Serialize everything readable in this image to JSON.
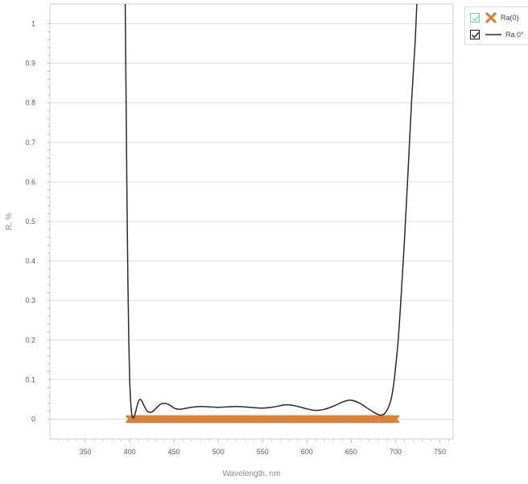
{
  "chart_data": {
    "type": "line",
    "xlabel": "Wavelength, nm",
    "ylabel": "R, %",
    "xlim": [
      310,
      765
    ],
    "ylim": [
      -0.05,
      1.05
    ],
    "xticks": [
      350,
      400,
      450,
      500,
      550,
      600,
      650,
      700,
      750
    ],
    "yticks": [
      0,
      0.1,
      0.2,
      0.3,
      0.4,
      0.5,
      0.6,
      0.7,
      0.8,
      0.9,
      1
    ],
    "grid": "horizontal",
    "legend_position": "top-right outside",
    "series": [
      {
        "name": "Ra(0)",
        "style": "x-markers",
        "color": "#d4843c",
        "x_range": [
          400,
          700
        ],
        "x_step": 2,
        "y": 0
      },
      {
        "name": "Ra 0°",
        "style": "line",
        "color": "#2b2b2b",
        "points": [
          [
            395,
            1.05
          ],
          [
            396,
            0.8
          ],
          [
            397,
            0.55
          ],
          [
            398,
            0.35
          ],
          [
            399,
            0.2
          ],
          [
            400,
            0.1
          ],
          [
            401,
            0.05
          ],
          [
            402,
            0.02
          ],
          [
            403,
            0.006
          ],
          [
            404,
            0.003
          ],
          [
            406,
            0.012
          ],
          [
            408,
            0.03
          ],
          [
            410,
            0.045
          ],
          [
            412,
            0.05
          ],
          [
            414,
            0.045
          ],
          [
            416,
            0.035
          ],
          [
            420,
            0.02
          ],
          [
            425,
            0.018
          ],
          [
            430,
            0.028
          ],
          [
            435,
            0.038
          ],
          [
            440,
            0.04
          ],
          [
            445,
            0.036
          ],
          [
            450,
            0.028
          ],
          [
            455,
            0.025
          ],
          [
            460,
            0.026
          ],
          [
            470,
            0.03
          ],
          [
            480,
            0.032
          ],
          [
            490,
            0.031
          ],
          [
            500,
            0.03
          ],
          [
            510,
            0.031
          ],
          [
            520,
            0.032
          ],
          [
            530,
            0.031
          ],
          [
            540,
            0.029
          ],
          [
            550,
            0.028
          ],
          [
            560,
            0.03
          ],
          [
            570,
            0.034
          ],
          [
            575,
            0.036
          ],
          [
            580,
            0.036
          ],
          [
            590,
            0.032
          ],
          [
            600,
            0.026
          ],
          [
            610,
            0.022
          ],
          [
            620,
            0.025
          ],
          [
            630,
            0.033
          ],
          [
            640,
            0.043
          ],
          [
            648,
            0.048
          ],
          [
            655,
            0.045
          ],
          [
            662,
            0.037
          ],
          [
            670,
            0.025
          ],
          [
            675,
            0.018
          ],
          [
            680,
            0.012
          ],
          [
            684,
            0.01
          ],
          [
            688,
            0.015
          ],
          [
            692,
            0.03
          ],
          [
            695,
            0.05
          ],
          [
            698,
            0.09
          ],
          [
            700,
            0.13
          ],
          [
            703,
            0.2
          ],
          [
            706,
            0.3
          ],
          [
            710,
            0.45
          ],
          [
            714,
            0.62
          ],
          [
            718,
            0.8
          ],
          [
            722,
            0.95
          ],
          [
            724,
            1.05
          ]
        ]
      }
    ]
  },
  "legend": {
    "items": [
      {
        "label": "Ra(0)",
        "checkbox": "cyan"
      },
      {
        "label": "Ra 0°",
        "checkbox": "dark"
      }
    ]
  }
}
